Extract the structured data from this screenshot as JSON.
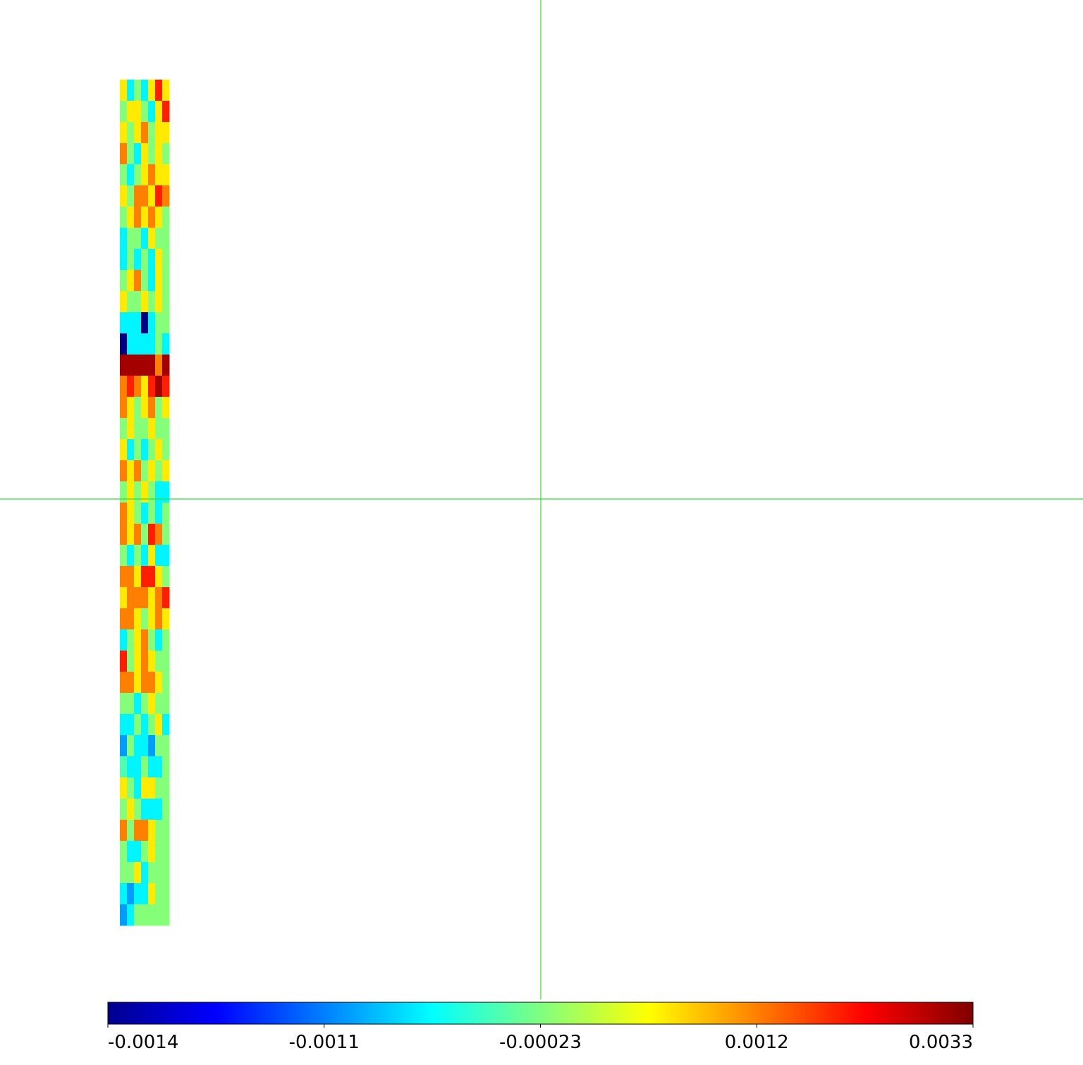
{
  "chart_data": {
    "type": "heatmap",
    "values": [
      [
        0.0006,
        -0.0007,
        -0.0002,
        -0.0007,
        0.0006,
        0.002,
        0.0006
      ],
      [
        -0.0002,
        0.0006,
        0.0006,
        -0.0002,
        -0.0007,
        0.0006,
        0.002
      ],
      [
        0.0006,
        -0.0002,
        0.0006,
        0.0012,
        -0.0002,
        0.0006,
        0.0006
      ],
      [
        0.0012,
        -0.0002,
        -0.0007,
        0.0006,
        -0.0002,
        0.0006,
        -0.0002
      ],
      [
        -0.0002,
        -0.0007,
        -0.0002,
        0.0006,
        0.0012,
        0.0006,
        0.0006
      ],
      [
        0.0006,
        -0.0002,
        0.0012,
        0.0012,
        0.0006,
        0.002,
        0.0012
      ],
      [
        -0.0002,
        0.0006,
        0.0012,
        0.0006,
        0.0012,
        0.0006,
        -0.0002
      ],
      [
        -0.0007,
        -0.0002,
        -0.0002,
        -0.0007,
        0.0006,
        -0.0002,
        -0.0002
      ],
      [
        -0.0007,
        -0.0002,
        -0.0007,
        -0.0002,
        -0.0007,
        0.0006,
        -0.0002
      ],
      [
        -0.0002,
        0.0006,
        0.0012,
        -0.0002,
        -0.0007,
        0.0006,
        -0.0002
      ],
      [
        0.0006,
        -0.0002,
        -0.0002,
        0.0006,
        -0.0002,
        0.0006,
        -0.0002
      ],
      [
        -0.0007,
        -0.0007,
        -0.0007,
        -0.0014,
        -0.0007,
        -0.0002,
        -0.0002
      ],
      [
        -0.0014,
        -0.0007,
        -0.0007,
        -0.0007,
        -0.0007,
        -0.0002,
        -0.0007
      ],
      [
        0.003,
        0.003,
        0.003,
        0.003,
        0.003,
        0.0012,
        0.003
      ],
      [
        0.0012,
        0.002,
        0.0012,
        0.0006,
        0.002,
        0.003,
        0.002
      ],
      [
        0.0012,
        0.0006,
        -0.0002,
        0.0006,
        0.0012,
        -0.0002,
        0.0006
      ],
      [
        -0.0002,
        0.0006,
        -0.0002,
        -0.0002,
        0.0006,
        -0.0002,
        -0.0002
      ],
      [
        0.0006,
        -0.0007,
        -0.0002,
        -0.0007,
        -0.0002,
        0.0006,
        -0.0002
      ],
      [
        0.0012,
        0.0006,
        0.0012,
        -0.0002,
        0.0006,
        -0.0002,
        0.0006
      ],
      [
        -0.0002,
        0.0006,
        -0.0002,
        0.0006,
        -0.0002,
        -0.0007,
        -0.0007
      ],
      [
        0.0012,
        0.0006,
        -0.0002,
        -0.0007,
        -0.0002,
        -0.0007,
        -0.0002
      ],
      [
        0.0012,
        0.0006,
        0.0012,
        -0.0002,
        0.002,
        0.0012,
        -0.0002
      ],
      [
        -0.0002,
        -0.0007,
        -0.0002,
        -0.0007,
        0.0006,
        -0.0007,
        -0.0007
      ],
      [
        0.0012,
        0.0012,
        0.0006,
        0.002,
        0.002,
        0.0006,
        -0.0002
      ],
      [
        0.0006,
        0.0012,
        0.0012,
        0.0012,
        0.0006,
        0.0012,
        0.002
      ],
      [
        0.0012,
        0.0012,
        0.0006,
        -0.0002,
        0.0006,
        0.0012,
        0.0006
      ],
      [
        -0.0007,
        -0.0002,
        0.0006,
        0.0012,
        -0.0002,
        -0.0007,
        -0.0002
      ],
      [
        0.002,
        -0.0002,
        0.0006,
        0.0012,
        0.0006,
        -0.0002,
        -0.0002
      ],
      [
        0.0012,
        0.0012,
        0.0006,
        0.0012,
        0.0012,
        0.0006,
        -0.0002
      ],
      [
        -0.0002,
        -0.0002,
        -0.0007,
        -0.0002,
        0.0006,
        -0.0002,
        -0.0002
      ],
      [
        -0.0007,
        -0.0007,
        -0.0002,
        -0.0007,
        -0.0002,
        0.0006,
        -0.0007
      ],
      [
        -0.001,
        -0.0002,
        -0.0007,
        -0.0007,
        -0.001,
        -0.0002,
        -0.0002
      ],
      [
        -0.0004,
        -0.0007,
        -0.0007,
        -0.0002,
        -0.0007,
        -0.0007,
        -0.0002
      ],
      [
        0.0006,
        -0.0002,
        -0.0007,
        0.0006,
        0.0006,
        -0.0002,
        -0.0002
      ],
      [
        -0.0002,
        0.0006,
        -0.0002,
        -0.0007,
        -0.0007,
        -0.0007,
        -0.0002
      ],
      [
        0.0012,
        -0.0002,
        0.0012,
        0.0012,
        0.0006,
        -0.0002,
        -0.0002
      ],
      [
        -0.0002,
        -0.0007,
        -0.0007,
        -0.0002,
        0.0006,
        -0.0002,
        -0.0002
      ],
      [
        -0.0002,
        -0.0002,
        0.0006,
        -0.0007,
        -0.0002,
        -0.0002,
        -0.0002
      ],
      [
        -0.0007,
        -0.001,
        -0.0007,
        -0.0007,
        0.0006,
        -0.0002,
        -0.0002
      ],
      [
        -0.001,
        -0.0007,
        -0.0002,
        -0.0002,
        -0.0002,
        -0.0002,
        -0.0002
      ]
    ],
    "colorbar_lim": [
      -0.0014,
      0.0033
    ],
    "colorbar_ticks": [
      -0.0014,
      -0.0011,
      -0.00023,
      0.0012,
      0.0033
    ],
    "colormap": "jet"
  }
}
